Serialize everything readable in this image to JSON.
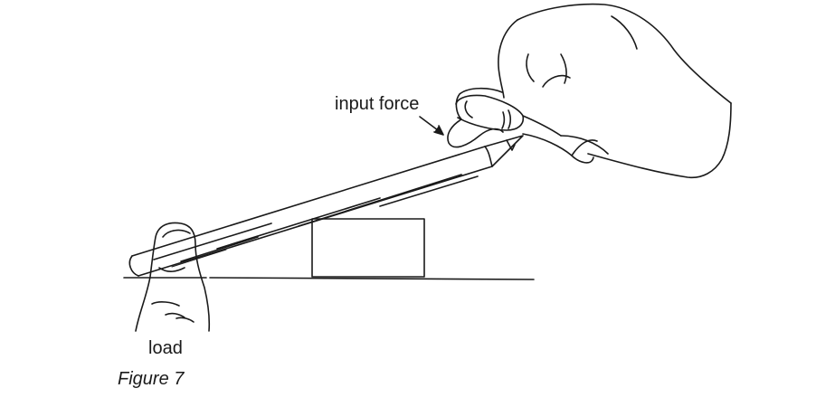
{
  "labels": {
    "input_force": "input force",
    "load": "load"
  },
  "caption": "Figure 7",
  "colors": {
    "ink": "#1a1a1a",
    "background": "#ffffff"
  }
}
